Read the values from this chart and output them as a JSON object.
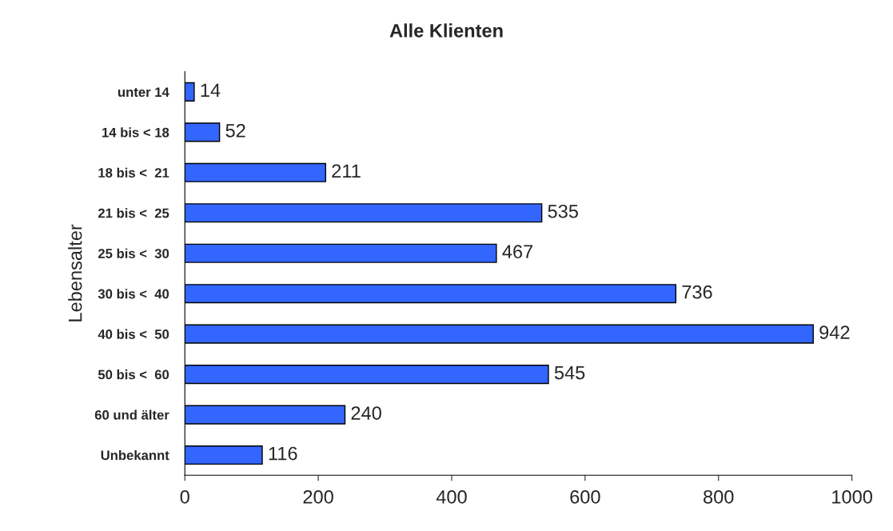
{
  "chart_data": {
    "type": "bar",
    "orientation": "horizontal",
    "title": "Alle Klienten",
    "ylabel": "Lebensalter",
    "categories": [
      "unter 14",
      "14 bis < 18",
      "18 bis <  21",
      "21 bis <  25",
      "25 bis <  30",
      "30 bis <  40",
      "40 bis <  50",
      "50 bis <  60",
      "60 und älter",
      "Unbekannt"
    ],
    "values": [
      14,
      52,
      211,
      535,
      467,
      736,
      942,
      545,
      240,
      116
    ],
    "color": "#3366ff",
    "xlim": [
      0,
      1000
    ],
    "xticks": [
      0,
      200,
      400,
      600,
      800,
      1000
    ],
    "data_labels": true,
    "grid": false,
    "legend": false
  }
}
